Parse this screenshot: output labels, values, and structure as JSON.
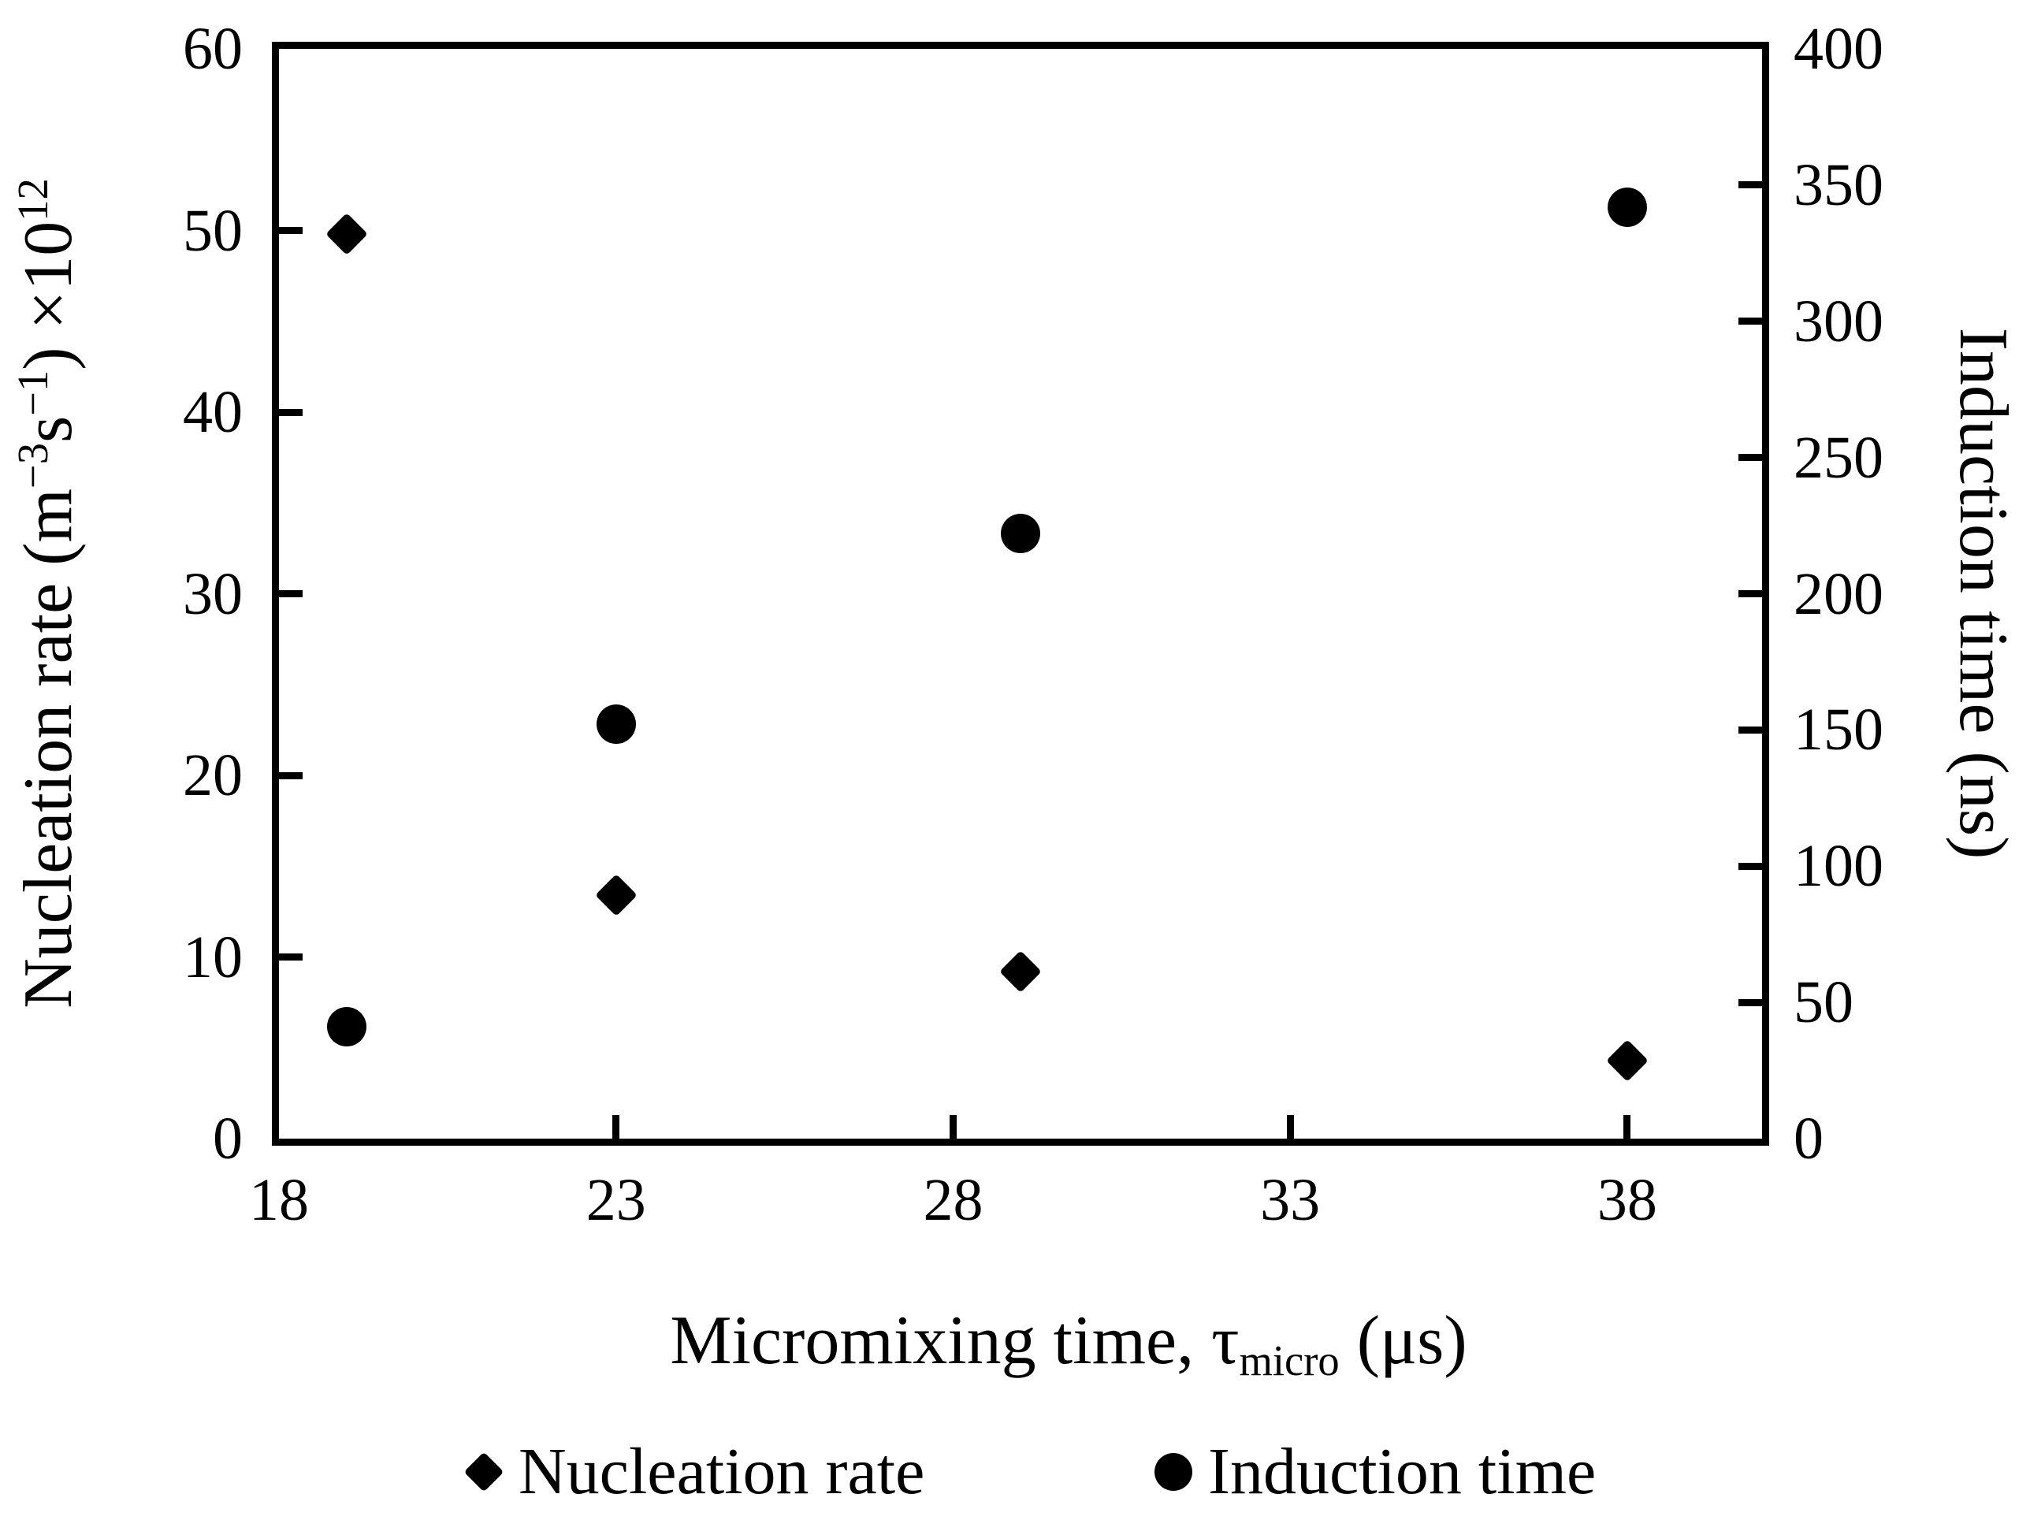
{
  "colors": {
    "foreground": "#000000",
    "background": "#ffffff"
  },
  "chart_data": {
    "type": "scatter",
    "title": "",
    "x_axis": {
      "label_parts": [
        {
          "text": "Micromixing time, τ",
          "style": "normal"
        },
        {
          "text": "micro",
          "style": "sub"
        },
        {
          "text": " (μs)",
          "style": "normal"
        }
      ],
      "min": 18,
      "max": 40,
      "tick_labels": [
        18,
        23,
        28,
        33,
        38
      ],
      "tick_marks": [
        23,
        28,
        33,
        38
      ]
    },
    "y_left_axis": {
      "label_parts": [
        {
          "text": "Nucleation rate (m",
          "style": "normal"
        },
        {
          "text": "−3",
          "style": "sup"
        },
        {
          "text": "s",
          "style": "normal"
        },
        {
          "text": "−1",
          "style": "sup"
        },
        {
          "text": ") ×10",
          "style": "normal"
        },
        {
          "text": "12",
          "style": "sup"
        }
      ],
      "min": 0,
      "max": 60,
      "tick_labels": [
        0,
        10,
        20,
        30,
        40,
        50,
        60
      ],
      "tick_marks": [
        10,
        20,
        30,
        40,
        50
      ]
    },
    "y_right_axis": {
      "label_parts": [
        {
          "text": "Induction time (ns)",
          "style": "normal"
        }
      ],
      "min": 0,
      "max": 400,
      "tick_labels": [
        0,
        50,
        100,
        150,
        200,
        250,
        300,
        350,
        400
      ],
      "tick_marks": [
        50,
        100,
        150,
        200,
        250,
        300,
        350
      ]
    },
    "grid": false,
    "legend_position": "bottom",
    "series": [
      {
        "name": "Nucleation rate",
        "marker": "diamond",
        "axis": "left",
        "x": [
          19,
          23,
          29,
          38
        ],
        "y": [
          49.8,
          13.4,
          9.2,
          4.3
        ]
      },
      {
        "name": "Induction time",
        "marker": "circle",
        "axis": "right",
        "x": [
          19,
          23,
          29,
          38
        ],
        "y": [
          41,
          152,
          222,
          342
        ]
      }
    ]
  }
}
